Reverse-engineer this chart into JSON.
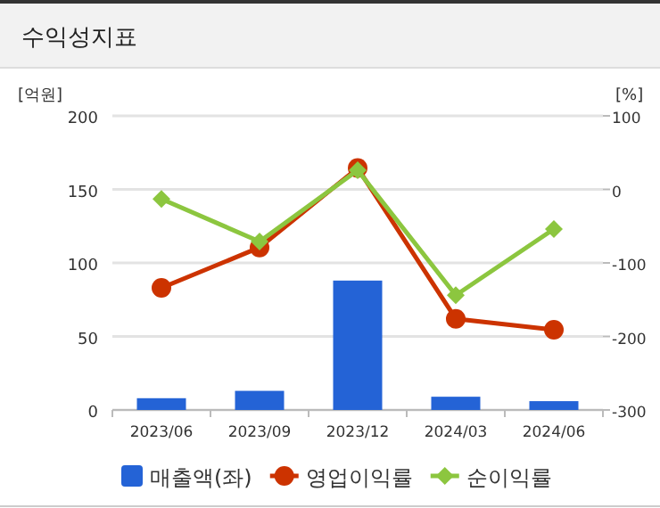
{
  "chart_data": {
    "type": "bar",
    "title": "수익성지표",
    "ylabel": "[억원]",
    "y2label": "[%]",
    "categories": [
      "2023/06",
      "2023/09",
      "2023/12",
      "2024/03",
      "2024/06"
    ],
    "series": [
      {
        "name": "매출액(좌)",
        "color": "#2463d6",
        "values": [
          8,
          13,
          88,
          9,
          6
        ]
      },
      {
        "name": "영업이익률",
        "type": "line",
        "axis": "y2",
        "color": "#cc3300",
        "marker": "circle",
        "values": [
          -134,
          -79,
          29,
          -176,
          -191
        ]
      },
      {
        "name": "순이익률",
        "type": "line",
        "axis": "y2",
        "color": "#8cc63f",
        "marker": "diamond",
        "values": [
          -13,
          -71,
          26,
          -144,
          -54
        ]
      }
    ],
    "ylim": [
      0,
      200
    ],
    "yticks": [
      0,
      50,
      100,
      150,
      200
    ],
    "y2lim": [
      -300,
      100
    ],
    "y2ticks": [
      -300,
      -200,
      -100,
      0,
      100
    ],
    "grid": "y",
    "legend": "bottom"
  }
}
